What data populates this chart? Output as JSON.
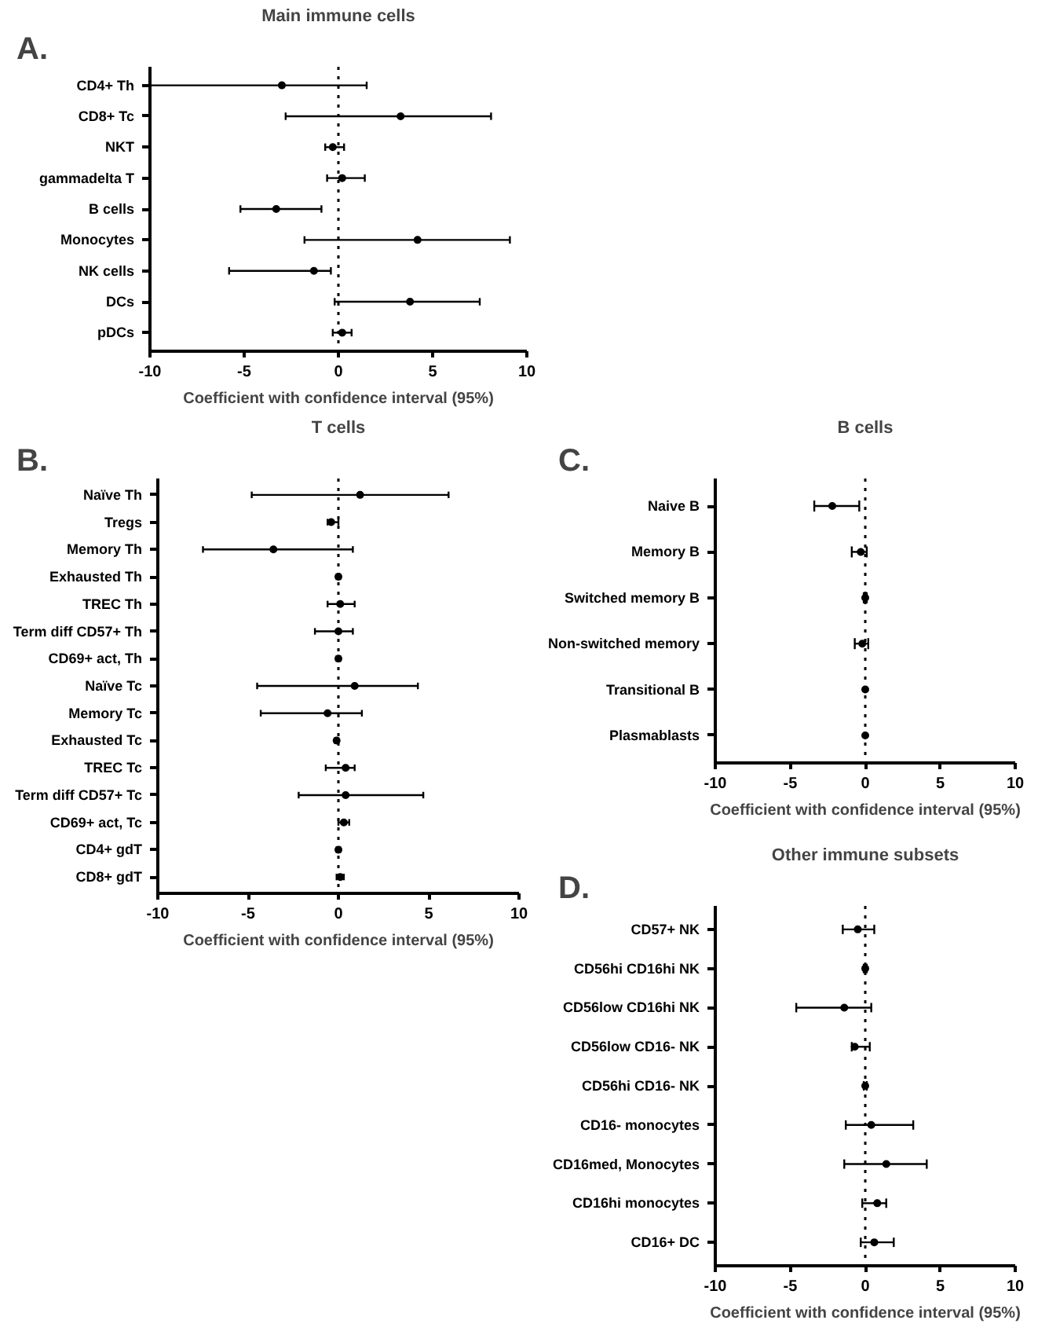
{
  "chart_data": [
    {
      "type": "scatter",
      "orientation": "horizontal",
      "title": "Main immune cells",
      "xlabel": "Coefficient with confidence interval (95%)",
      "annotations": [
        "A."
      ],
      "marker": "circle",
      "grid": false,
      "categories": [
        "CD4+ Th",
        "CD8+ Tc",
        "NKT",
        "gammadelta T",
        "B cells",
        "Monocytes",
        "NK cells",
        "DCs",
        "pDCs"
      ],
      "series": [
        {
          "color": "#000000",
          "values": [
            -3.0,
            3.3,
            -0.3,
            0.2,
            -3.3,
            4.2,
            -1.3,
            3.8,
            0.2
          ],
          "errors": [
            [
              -10,
              1.5
            ],
            [
              -2.8,
              8.1
            ],
            [
              -0.7,
              0.3
            ],
            [
              -0.6,
              1.4
            ],
            [
              -5.2,
              -0.9
            ],
            [
              -1.8,
              9.1
            ],
            [
              -5.8,
              -0.4
            ],
            [
              -0.2,
              7.5
            ],
            [
              -0.3,
              0.7
            ]
          ]
        }
      ],
      "xlim": [
        -10,
        10
      ],
      "xticks": [
        -10,
        -5,
        0,
        5,
        10
      ],
      "ref_lines": [
        {
          "axis": "x",
          "value": 0,
          "line_style": "dotted",
          "color": "#000000"
        }
      ]
    },
    {
      "type": "scatter",
      "orientation": "horizontal",
      "title": "T cells",
      "xlabel": "Coefficient with confidence interval (95%)",
      "annotations": [
        "B."
      ],
      "marker": "circle",
      "grid": false,
      "categories": [
        "Naïve Th",
        "Tregs",
        "Memory Th",
        "Exhausted Th",
        "TREC Th",
        "Term diff CD57+ Th",
        "CD69+ act, Th",
        "Naïve Tc",
        "Memory Tc",
        "Exhausted Tc",
        "TREC Tc",
        "Term diff CD57+ Tc",
        "CD69+ act, Tc",
        "CD4+ gdT",
        "CD8+ gdT"
      ],
      "series": [
        {
          "color": "#000000",
          "values": [
            1.2,
            -0.4,
            -3.6,
            0,
            0.1,
            0,
            0,
            0.9,
            -0.6,
            -0.1,
            0.4,
            0.4,
            0.3,
            0,
            0.1
          ],
          "errors": [
            [
              -4.8,
              6.1
            ],
            [
              -0.6,
              0.0
            ],
            [
              -7.5,
              0.8
            ],
            [
              -0.1,
              0.1
            ],
            [
              -0.6,
              0.9
            ],
            [
              -1.3,
              0.8
            ],
            [
              -0.1,
              0.1
            ],
            [
              -4.5,
              4.4
            ],
            [
              -4.3,
              1.3
            ],
            [
              -0.2,
              0.0
            ],
            [
              -0.7,
              0.9
            ],
            [
              -2.2,
              4.7
            ],
            [
              0.0,
              0.6
            ],
            [
              -0.1,
              0.1
            ],
            [
              -0.1,
              0.3
            ]
          ]
        }
      ],
      "xlim": [
        -10,
        10
      ],
      "xticks": [
        -10,
        -5,
        0,
        5,
        10
      ],
      "ref_lines": [
        {
          "axis": "x",
          "value": 0,
          "line_style": "dotted",
          "color": "#000000"
        }
      ]
    },
    {
      "type": "scatter",
      "orientation": "horizontal",
      "title": "B cells",
      "xlabel": "Coefficient with confidence interval (95%)",
      "annotations": [
        "C."
      ],
      "marker": "circle",
      "grid": false,
      "categories": [
        "Naive B",
        "Memory B",
        "Switched memory B",
        "Non-switched memory",
        "Transitional B",
        "Plasmablasts"
      ],
      "series": [
        {
          "color": "#000000",
          "values": [
            -2.2,
            -0.3,
            0,
            -0.2,
            0,
            0
          ],
          "errors": [
            [
              -3.4,
              -0.4
            ],
            [
              -0.9,
              0.1
            ],
            [
              -0.1,
              0.1
            ],
            [
              -0.7,
              0.2
            ],
            null,
            null
          ]
        }
      ],
      "xlim": [
        -10,
        10
      ],
      "xticks": [
        -10,
        -5,
        0,
        5,
        10
      ],
      "ref_lines": [
        {
          "axis": "x",
          "value": 0,
          "line_style": "dotted",
          "color": "#000000"
        }
      ]
    },
    {
      "type": "scatter",
      "orientation": "horizontal",
      "title": "Other immune subsets",
      "xlabel": "Coefficient with confidence interval (95%)",
      "annotations": [
        "D."
      ],
      "marker": "circle",
      "grid": false,
      "categories": [
        "CD57+ NK",
        "CD56hi CD16hi NK",
        "CD56low CD16hi NK",
        "CD56low CD16- NK",
        "CD56hi CD16- NK",
        "CD16- monocytes",
        "CD16med, Monocytes",
        "CD16hi monocytes",
        "CD16+ DC"
      ],
      "series": [
        {
          "color": "#000000",
          "values": [
            -0.5,
            0,
            -1.4,
            -0.7,
            0,
            0.4,
            1.4,
            0.8,
            0.6
          ],
          "errors": [
            [
              -1.5,
              0.6
            ],
            [
              -0.1,
              0.1
            ],
            [
              -4.6,
              0.4
            ],
            [
              -0.9,
              0.3
            ],
            [
              -0.1,
              0.1
            ],
            [
              -1.3,
              3.2
            ],
            [
              -1.4,
              4.1
            ],
            [
              -0.2,
              1.4
            ],
            [
              -0.3,
              1.9
            ]
          ]
        }
      ],
      "xlim": [
        -10,
        10
      ],
      "xticks": [
        -10,
        -5,
        0,
        5,
        10
      ],
      "ref_lines": [
        {
          "axis": "x",
          "value": 0,
          "line_style": "dotted",
          "color": "#000000"
        }
      ]
    }
  ]
}
